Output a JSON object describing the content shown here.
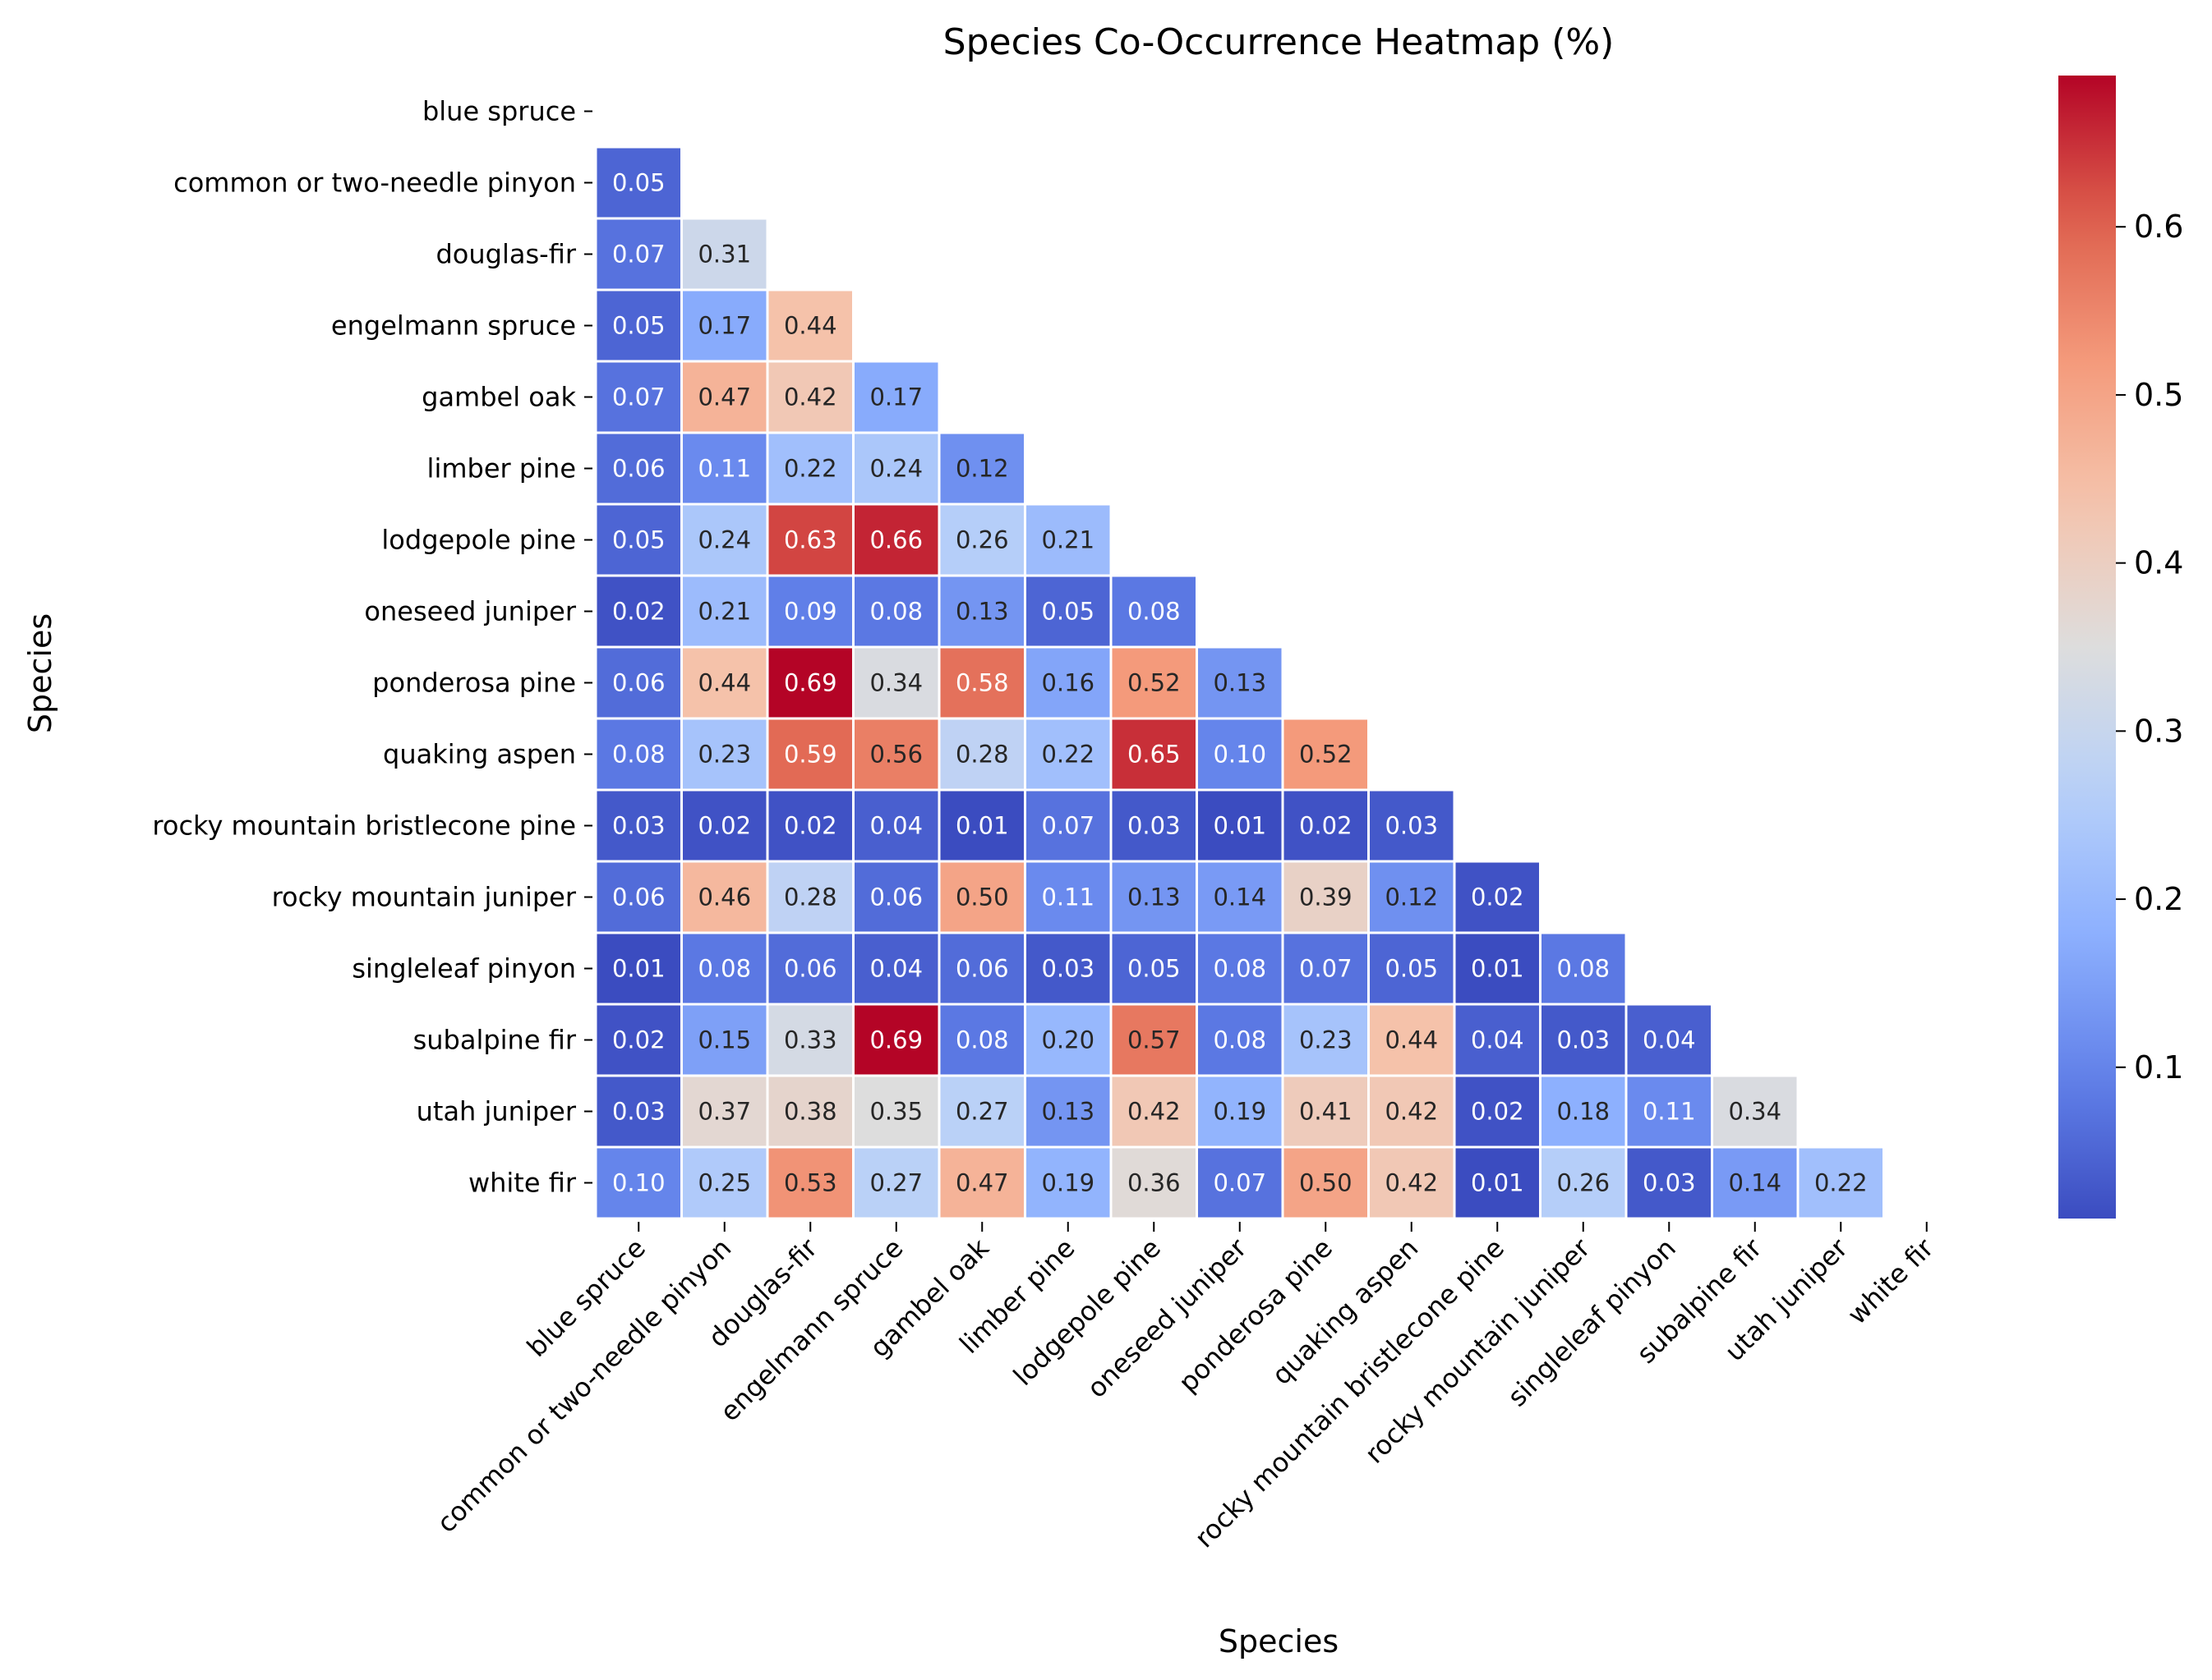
{
  "chart_data": {
    "type": "heatmap",
    "title": "Species Co-Occurrence Heatmap (%)",
    "xlabel": "Species",
    "ylabel": "Species",
    "categories": [
      "blue spruce",
      "common or two-needle pinyon",
      "douglas-fir",
      "engelmann spruce",
      "gambel oak",
      "limber pine",
      "lodgepole pine",
      "oneseed juniper",
      "ponderosa pine",
      "quaking aspen",
      "rocky mountain bristlecone pine",
      "rocky mountain juniper",
      "singleleaf pinyon",
      "subalpine fir",
      "utah juniper",
      "white fir"
    ],
    "mask": "upper triangle including diagonal",
    "values": [
      [],
      [
        0.05
      ],
      [
        0.07,
        0.31
      ],
      [
        0.05,
        0.17,
        0.44
      ],
      [
        0.07,
        0.47,
        0.42,
        0.17
      ],
      [
        0.06,
        0.11,
        0.22,
        0.24,
        0.12
      ],
      [
        0.05,
        0.24,
        0.63,
        0.66,
        0.26,
        0.21
      ],
      [
        0.02,
        0.21,
        0.09,
        0.08,
        0.13,
        0.05,
        0.08
      ],
      [
        0.06,
        0.44,
        0.69,
        0.34,
        0.58,
        0.16,
        0.52,
        0.13
      ],
      [
        0.08,
        0.23,
        0.59,
        0.56,
        0.28,
        0.22,
        0.65,
        0.1,
        0.52
      ],
      [
        0.03,
        0.02,
        0.02,
        0.04,
        0.01,
        0.07,
        0.03,
        0.01,
        0.02,
        0.03
      ],
      [
        0.06,
        0.46,
        0.28,
        0.06,
        0.5,
        0.11,
        0.13,
        0.14,
        0.39,
        0.12,
        0.02
      ],
      [
        0.01,
        0.08,
        0.06,
        0.04,
        0.06,
        0.03,
        0.05,
        0.08,
        0.07,
        0.05,
        0.01,
        0.08
      ],
      [
        0.02,
        0.15,
        0.33,
        0.69,
        0.08,
        0.2,
        0.57,
        0.08,
        0.23,
        0.44,
        0.04,
        0.03,
        0.04
      ],
      [
        0.03,
        0.37,
        0.38,
        0.35,
        0.27,
        0.13,
        0.42,
        0.19,
        0.41,
        0.42,
        0.02,
        0.18,
        0.11,
        0.34
      ],
      [
        0.1,
        0.25,
        0.53,
        0.27,
        0.47,
        0.19,
        0.36,
        0.07,
        0.5,
        0.42,
        0.01,
        0.26,
        0.03,
        0.14,
        0.22
      ]
    ],
    "colormap": "coolwarm",
    "vmin": 0.01,
    "vmax": 0.69,
    "colorbar": {
      "ticks": [
        0.1,
        0.2,
        0.3,
        0.4,
        0.5,
        0.6
      ],
      "tick_labels": [
        "0.1",
        "0.2",
        "0.3",
        "0.4",
        "0.5",
        "0.6"
      ]
    },
    "annotate": true,
    "value_format": "0.00",
    "cell_border_color": "#ffffff"
  }
}
